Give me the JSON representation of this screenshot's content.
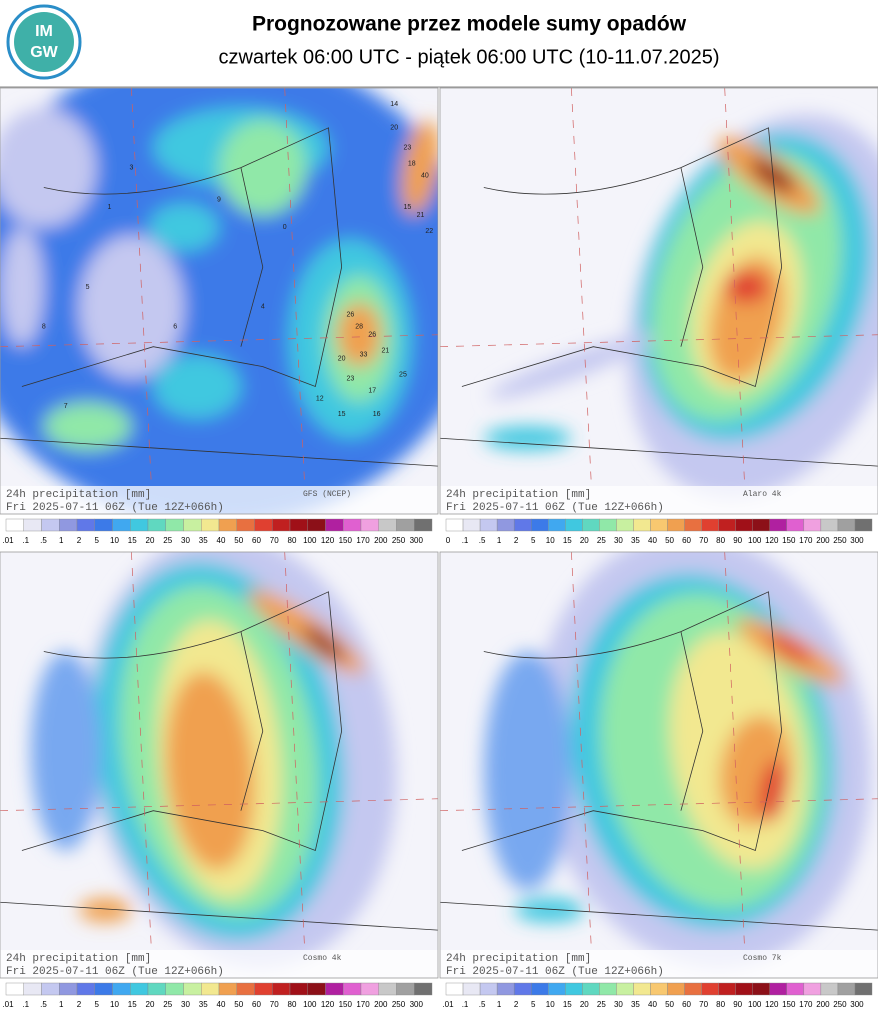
{
  "header": {
    "logo": [
      "IM",
      "GW"
    ],
    "title": "Prognozowane przez modele sumy opadów",
    "subtitle": "czwartek 06:00 UTC - piątek 06:00 UTC (10-11.07.2025)"
  },
  "panels": [
    {
      "label": "24h precipitation [mm]",
      "model": "GFS (NCEP)",
      "run": "Fri 2025-07-11 06Z (Tue 12Z+066h)",
      "scale": [
        ".01",
        ".1",
        ".5",
        "1",
        "2",
        "5",
        "10",
        "15",
        "20",
        "25",
        "30",
        "35",
        "40",
        "50",
        "60",
        "70",
        "80",
        "100",
        "120",
        "150",
        "170",
        "200",
        "250",
        "300"
      ],
      "map_labels": [
        "14",
        "20",
        "23",
        "18",
        "40",
        "15",
        "21",
        "22",
        "9",
        "3",
        "0",
        "26",
        "28",
        "26",
        "33",
        "20",
        "21",
        "23",
        "17",
        "25",
        "15",
        "16",
        "12",
        "5",
        "8",
        "6",
        "7",
        "1",
        "4"
      ]
    },
    {
      "label": "24h precipitation [mm]",
      "model": "Alaro 4k",
      "run": "Fri 2025-07-11 06Z (Tue 12Z+066h)",
      "scale": [
        "0",
        ".1",
        ".5",
        "1",
        "2",
        "5",
        "10",
        "15",
        "20",
        "25",
        "30",
        "35",
        "40",
        "50",
        "60",
        "70",
        "80",
        "90",
        "100",
        "120",
        "150",
        "170",
        "200",
        "250",
        "300"
      ]
    },
    {
      "label": "24h precipitation [mm]",
      "model": "Cosmo 4k",
      "run": "Fri 2025-07-11 06Z (Tue 12Z+066h)",
      "scale": [
        ".01",
        ".1",
        ".5",
        "1",
        "2",
        "5",
        "10",
        "15",
        "20",
        "25",
        "30",
        "35",
        "40",
        "50",
        "60",
        "70",
        "80",
        "100",
        "120",
        "150",
        "170",
        "200",
        "250",
        "300"
      ]
    },
    {
      "label": "24h precipitation [mm]",
      "model": "Cosmo 7k",
      "run": "Fri 2025-07-11 06Z (Tue 12Z+066h)",
      "scale": [
        ".01",
        ".1",
        ".5",
        "1",
        "2",
        "5",
        "10",
        "15",
        "20",
        "25",
        "30",
        "35",
        "40",
        "50",
        "60",
        "70",
        "80",
        "90",
        "100",
        "120",
        "150",
        "170",
        "200",
        "250",
        "300"
      ]
    }
  ]
}
